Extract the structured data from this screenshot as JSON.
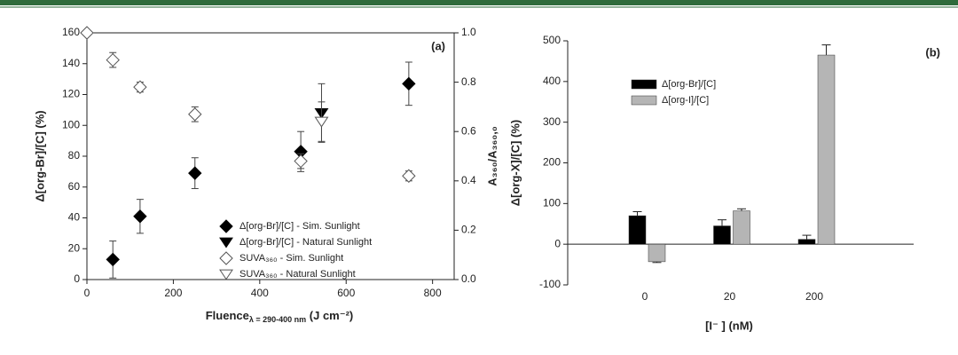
{
  "chart_data": [
    {
      "type": "scatter",
      "panel": "(a)",
      "ylabel": "Δ[org-Br]/[C] (%)",
      "y2label": "A₃₆₀/A₃₆₀,₀",
      "xlabel": [
        "Fluence",
        "λ = 290-400 nm",
        " (J cm⁻²)"
      ],
      "xlim": [
        0,
        850
      ],
      "xticks": [
        0,
        200,
        400,
        600,
        800
      ],
      "ylim": [
        0,
        160
      ],
      "yticks": [
        0,
        20,
        40,
        60,
        80,
        100,
        120,
        140,
        160
      ],
      "y2lim": [
        0,
        1
      ],
      "y2ticks": [
        {
          "value": 0,
          "label": "0.0"
        },
        {
          "value": 0.2,
          "label": "0.2"
        },
        {
          "value": 0.4,
          "label": "0.4"
        },
        {
          "value": 0.6,
          "label": "0.6"
        },
        {
          "value": 0.8,
          "label": "0.8"
        },
        {
          "value": 1,
          "label": "1.0"
        }
      ],
      "series": [
        {
          "name": "Δ[org-Br]/[C] - Sim. Sunlight",
          "color": "#000000",
          "marker": "diamond",
          "filled": true,
          "x": [
            60,
            123,
            250,
            495,
            745
          ],
          "values": [
            13,
            41,
            69,
            83,
            127
          ],
          "errors": [
            12,
            11,
            10,
            13,
            14
          ]
        },
        {
          "name": "Δ[org-Br]/[C] - Natural Sunlight",
          "color": "#000000",
          "marker": "triangle-down",
          "filled": true,
          "x": [
            543
          ],
          "values": [
            108
          ],
          "errors": [
            19
          ]
        },
        {
          "name": "SUVA₃₆₀ - Sim. Sunlight",
          "color": "#000000",
          "marker": "diamond",
          "filled": false,
          "axis": "y2",
          "x": [
            0,
            60,
            123,
            250,
            495,
            745
          ],
          "values": [
            1.0,
            0.89,
            0.78,
            0.67,
            0.48,
            0.42
          ],
          "errors": [
            0,
            0.03,
            0.02,
            0.03,
            0.03,
            0.02
          ]
        },
        {
          "name": "SUVA₃₆₀ - Natural Sunlight",
          "color": "#000000",
          "marker": "triangle-down",
          "filled": false,
          "axis": "y2",
          "x": [
            543
          ],
          "values": [
            0.64
          ],
          "errors": [
            0.08
          ]
        }
      ]
    },
    {
      "type": "bar",
      "panel": "(b)",
      "ylabel": "Δ[org-X]/[C] (%)",
      "xlabel": "[I⁻ ] (nM)",
      "categories": [
        "0",
        "20",
        "200"
      ],
      "ylim": [
        -100,
        500
      ],
      "yticks": [
        -100,
        0,
        100,
        200,
        300,
        400,
        500
      ],
      "series": [
        {
          "name": "Δ[org-Br]/[C]",
          "color": "#000000",
          "values": [
            70,
            45,
            12
          ],
          "errors": [
            10,
            15,
            10
          ]
        },
        {
          "name": "Δ[org-I]/[C]",
          "color": "#b5b5b5",
          "values": [
            -43,
            82,
            465
          ],
          "errors": [
            2,
            5,
            25
          ]
        }
      ]
    }
  ]
}
